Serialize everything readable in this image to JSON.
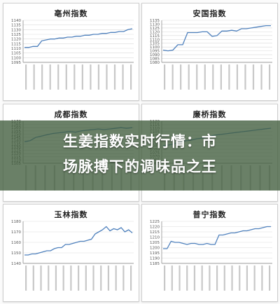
{
  "banner": {
    "line1": "生姜指数实时行情：市",
    "line2": "场脉搏下的调味品之王"
  },
  "colors": {
    "series": "#4f81bd",
    "grid": "#d9d9d9",
    "axis": "#7f7f7f"
  },
  "chart_data": [
    {
      "type": "line",
      "title": "亳州指数",
      "ylim": [
        1095,
        1140
      ],
      "yticks": [
        1095,
        1100,
        1105,
        1110,
        1115,
        1120,
        1125,
        1130,
        1135,
        1140
      ],
      "x_tick_count": 14,
      "values": [
        1111,
        1111,
        1112,
        1112,
        1118,
        1119,
        1120,
        1120,
        1121,
        1121,
        1122,
        1122,
        1123,
        1123,
        1124,
        1124,
        1125,
        1125,
        1126,
        1126,
        1127,
        1127,
        1128,
        1128,
        1130,
        1131
      ]
    },
    {
      "type": "line",
      "title": "安国指数",
      "ylim": [
        1080,
        1135
      ],
      "yticks": [
        1080,
        1085,
        1090,
        1095,
        1100,
        1105,
        1110,
        1115,
        1120,
        1125,
        1130,
        1135
      ],
      "x_tick_count": 14,
      "values": [
        1096,
        1095,
        1096,
        1103,
        1103,
        1119,
        1119,
        1119,
        1120,
        1120,
        1114,
        1115,
        1121,
        1121,
        1122,
        1121,
        1124,
        1124,
        1125,
        1126,
        1127,
        1128,
        1128
      ]
    },
    {
      "type": "line",
      "title": "成都指数",
      "ylim": [
        1105,
        1170
      ],
      "yticks": [
        1105,
        1110,
        1115,
        1120,
        1125,
        1130,
        1135,
        1140,
        1145,
        1150,
        1155,
        1160,
        1165,
        1170
      ],
      "x_tick_count": 12,
      "values": [
        1138,
        1140,
        1145,
        1147,
        1149,
        1151,
        1152,
        1153,
        1154,
        1153,
        1155,
        1156,
        1157,
        1158,
        1157,
        1158,
        1159,
        1160,
        1159,
        1160
      ]
    },
    {
      "type": "line",
      "title": "廉桥指数",
      "ylim": [
        1060,
        1120
      ],
      "yticks": [
        1060,
        1065,
        1070,
        1075,
        1080,
        1085,
        1090,
        1095,
        1100,
        1105,
        1110,
        1115,
        1120
      ],
      "x_tick_count": 12,
      "values": [
        1085,
        1086,
        1088,
        1090,
        1092,
        1093,
        1095,
        1096,
        1098,
        1100,
        1101,
        1102,
        1103,
        1104,
        1105,
        1106,
        1107,
        1108,
        1109,
        1110
      ]
    },
    {
      "type": "line",
      "title": "玉林指数",
      "ylim": [
        1140,
        1180
      ],
      "yticks": [
        1140,
        1150,
        1160,
        1170,
        1180
      ],
      "x_tick_count": 15,
      "values": [
        1148,
        1148,
        1149,
        1149,
        1150,
        1151,
        1152,
        1152,
        1154,
        1155,
        1155,
        1158,
        1158,
        1159,
        1160,
        1161,
        1161,
        1162,
        1163,
        1168,
        1170,
        1172,
        1175,
        1171,
        1173,
        1172,
        1174,
        1170,
        1172,
        1169
      ]
    },
    {
      "type": "line",
      "title": "普宁指数",
      "ylim": [
        1185,
        1225
      ],
      "yticks": [
        1185,
        1190,
        1195,
        1200,
        1205,
        1210,
        1215,
        1220,
        1225
      ],
      "x_tick_count": 15,
      "values": [
        1199,
        1199,
        1206,
        1205,
        1205,
        1204,
        1203,
        1204,
        1204,
        1203,
        1203,
        1204,
        1203,
        1203,
        1212,
        1212,
        1213,
        1214,
        1214,
        1215,
        1216,
        1216,
        1217,
        1218,
        1218,
        1219,
        1220,
        1220
      ]
    }
  ]
}
